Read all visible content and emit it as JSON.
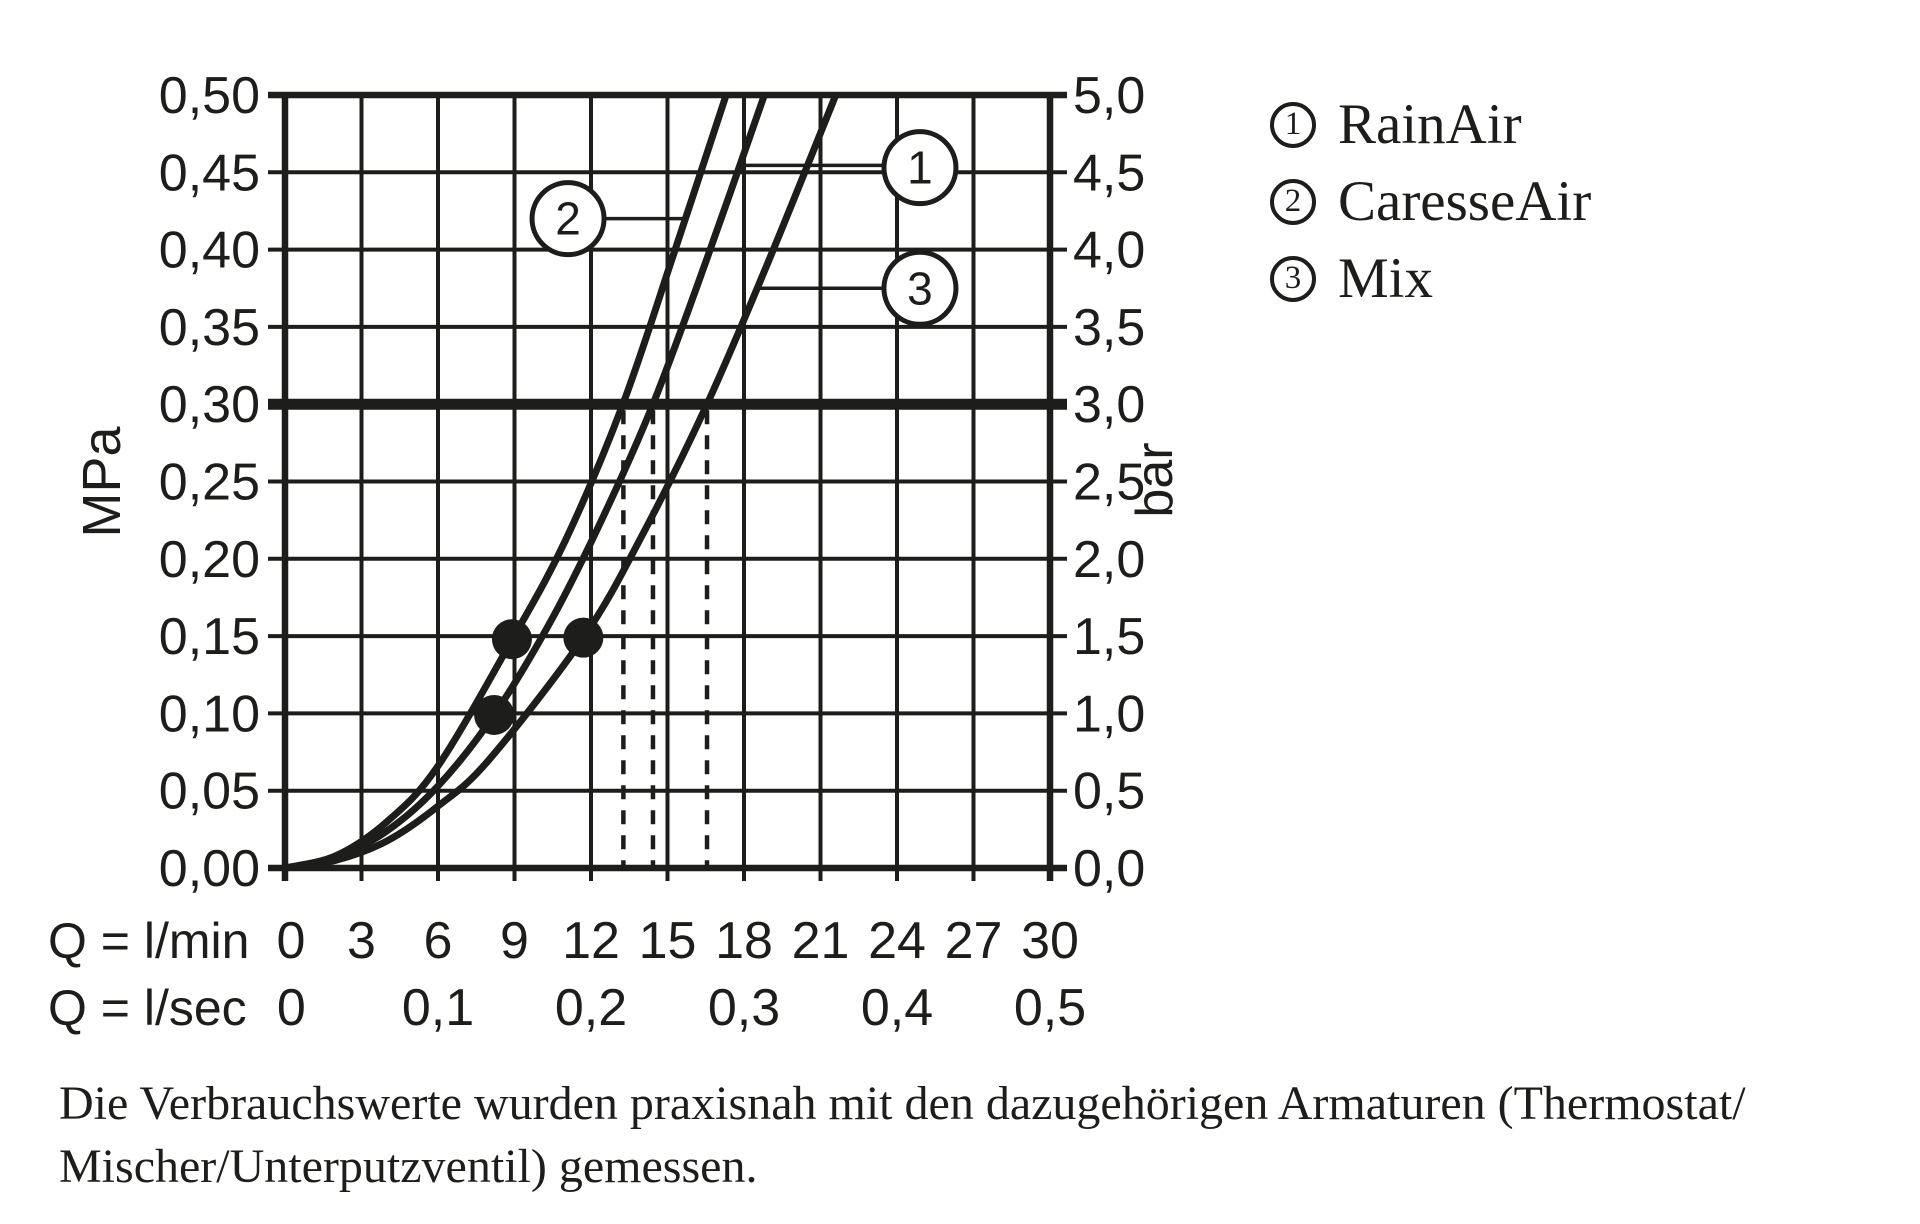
{
  "colors": {
    "ink": "#1d1d1b",
    "background": "#ffffff"
  },
  "chart_data": {
    "type": "line",
    "title": "",
    "grid": true,
    "x_axis": {
      "row1_label": "Q = l/min",
      "row1_ticks": [
        "0",
        "3",
        "6",
        "9",
        "12",
        "15",
        "18",
        "21",
        "24",
        "27",
        "30"
      ],
      "row2_label": "Q = l/sec",
      "row2_ticks": [
        {
          "text": "0",
          "q": 0.25
        },
        {
          "text": "0,1",
          "q": 6
        },
        {
          "text": "0,2",
          "q": 12
        },
        {
          "text": "0,3",
          "q": 18
        },
        {
          "text": "0,4",
          "q": 24
        },
        {
          "text": "0,5",
          "q": 30
        }
      ],
      "range_lmin": [
        0,
        30
      ],
      "gridline_step_lmin": 3
    },
    "y_axis_left": {
      "unit": "MPa",
      "ticks": [
        "0,50",
        "0,45",
        "0,40",
        "0,35",
        "0,30",
        "0,25",
        "0,20",
        "0,15",
        "0,10",
        "0,05",
        "0,00"
      ],
      "range_mpa": [
        0,
        0.5
      ],
      "gridline_step_mpa": 0.05
    },
    "y_axis_right": {
      "unit": "bar",
      "ticks": [
        "5,0",
        "4,5",
        "4,0",
        "3,5",
        "3,0",
        "2,5",
        "2,0",
        "1,5",
        "1,0",
        "0,5",
        "0,0"
      ]
    },
    "reference_line": {
      "mpa": 0.3,
      "bar": 3.0
    },
    "dashed_drop_lines_lmin": [
      13.27,
      14.43,
      16.55
    ],
    "series": [
      {
        "num": "1",
        "name": "RainAir",
        "points": [
          [
            0,
            0
          ],
          [
            2,
            0.007
          ],
          [
            4,
            0.024
          ],
          [
            6,
            0.053
          ],
          [
            8.2,
            0.099
          ],
          [
            10.5,
            0.162
          ],
          [
            12.5,
            0.228
          ],
          [
            14.43,
            0.3
          ],
          [
            16.5,
            0.392
          ],
          [
            18.8,
            0.5
          ]
        ]
      },
      {
        "num": "2",
        "name": "CaresseAir",
        "points": [
          [
            0,
            0
          ],
          [
            2,
            0.008
          ],
          [
            4,
            0.03
          ],
          [
            6,
            0.066
          ],
          [
            8.9,
            0.1475
          ],
          [
            11,
            0.212
          ],
          [
            13.25,
            0.3
          ],
          [
            15.3,
            0.4
          ],
          [
            17.3,
            0.5
          ]
        ]
      },
      {
        "num": "3",
        "name": "Mix",
        "points": [
          [
            0,
            0
          ],
          [
            2,
            0.005
          ],
          [
            4,
            0.0175
          ],
          [
            6,
            0.04
          ],
          [
            8,
            0.07
          ],
          [
            11.7,
            0.149
          ],
          [
            14,
            0.215
          ],
          [
            16.55,
            0.3
          ],
          [
            19,
            0.394
          ],
          [
            21.6,
            0.5
          ]
        ]
      }
    ],
    "measured_point_markers": [
      {
        "q_lmin": 8.2,
        "p_mpa": 0.099
      },
      {
        "q_lmin": 8.9,
        "p_mpa": 0.148
      },
      {
        "q_lmin": 11.7,
        "p_mpa": 0.149
      }
    ],
    "callouts": [
      {
        "num": "1",
        "circle_q": 24.9,
        "circle_mpa": 0.453,
        "tip_q": 17.8,
        "tip_mpa": 0.4545
      },
      {
        "num": "2",
        "circle_q": 11.1,
        "circle_mpa": 0.42,
        "tip_q": 15.65,
        "tip_mpa": 0.42
      },
      {
        "num": "3",
        "circle_q": 24.9,
        "circle_mpa": 0.375,
        "tip_q": 18.5,
        "tip_mpa": 0.375
      }
    ],
    "legend_position": "right"
  },
  "legend": {
    "items": [
      {
        "num": "1",
        "label": "RainAir"
      },
      {
        "num": "2",
        "label": "CaresseAir"
      },
      {
        "num": "3",
        "label": "Mix"
      }
    ]
  },
  "footnote": {
    "line1": "Die Verbrauchswerte wurden praxisnah mit den dazugehörigen Armaturen (Thermostat/",
    "line2": "Mischer/Unterputzventil) gemessen."
  }
}
